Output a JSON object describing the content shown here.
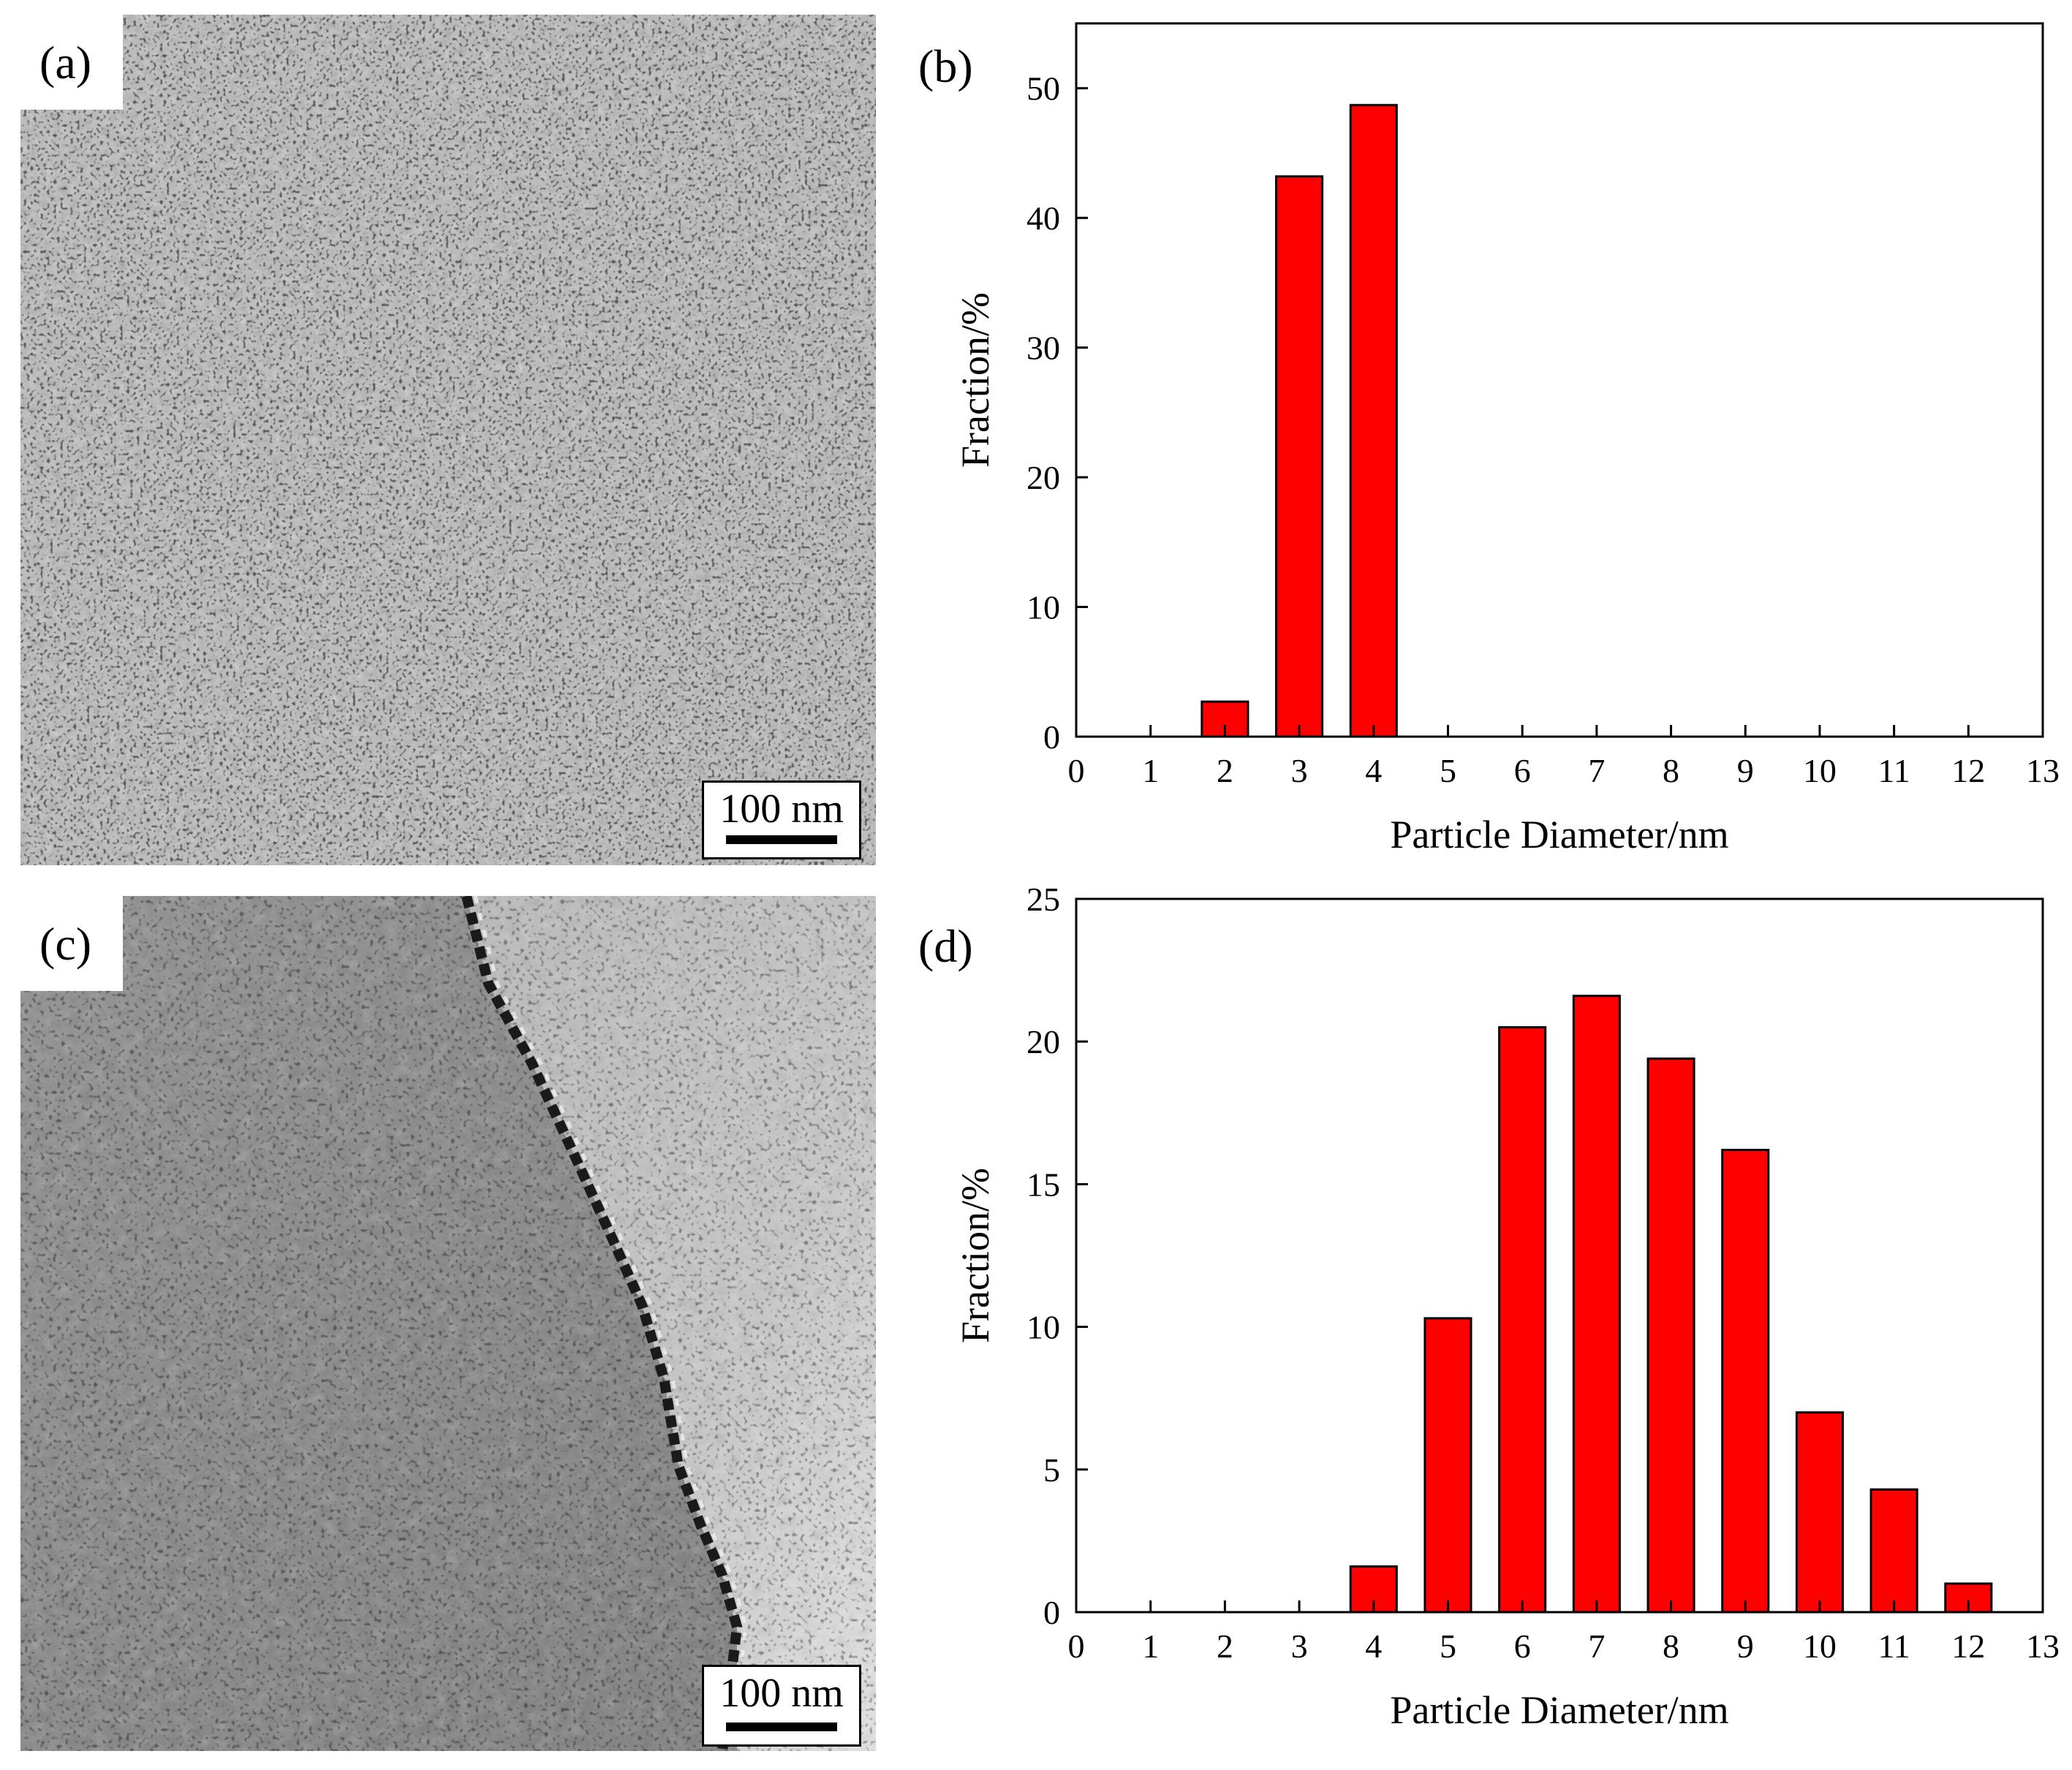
{
  "panels": {
    "a": {
      "label": "(a)",
      "scale_bar": "100 nm"
    },
    "b": {
      "label": "(b)"
    },
    "c": {
      "label": "(c)",
      "scale_bar": "100 nm"
    },
    "d": {
      "label": "(d)"
    }
  },
  "chart_data": [
    {
      "panel": "(b)",
      "type": "bar",
      "xlabel": "Particle Diameter/nm",
      "ylabel": "Fraction/%",
      "xlim": [
        0,
        13
      ],
      "ylim": [
        0,
        55
      ],
      "xticks": [
        0,
        1,
        2,
        3,
        4,
        5,
        6,
        7,
        8,
        9,
        10,
        11,
        12,
        13
      ],
      "yticks": [
        0,
        10,
        20,
        30,
        40,
        50
      ],
      "bar_color": "#ff0000",
      "x": [
        2,
        3,
        4
      ],
      "values": [
        2.7,
        43.2,
        48.7
      ]
    },
    {
      "panel": "(d)",
      "type": "bar",
      "xlabel": "Particle Diameter/nm",
      "ylabel": "Fraction/%",
      "xlim": [
        0,
        13
      ],
      "ylim": [
        0,
        25
      ],
      "xticks": [
        0,
        1,
        2,
        3,
        4,
        5,
        6,
        7,
        8,
        9,
        10,
        11,
        12,
        13
      ],
      "yticks": [
        0,
        5,
        10,
        15,
        20,
        25
      ],
      "bar_color": "#ff0000",
      "x": [
        4,
        5,
        6,
        7,
        8,
        9,
        10,
        11,
        12
      ],
      "values": [
        1.6,
        10.3,
        20.5,
        21.6,
        19.4,
        16.2,
        7.0,
        4.3,
        1.0
      ]
    }
  ]
}
